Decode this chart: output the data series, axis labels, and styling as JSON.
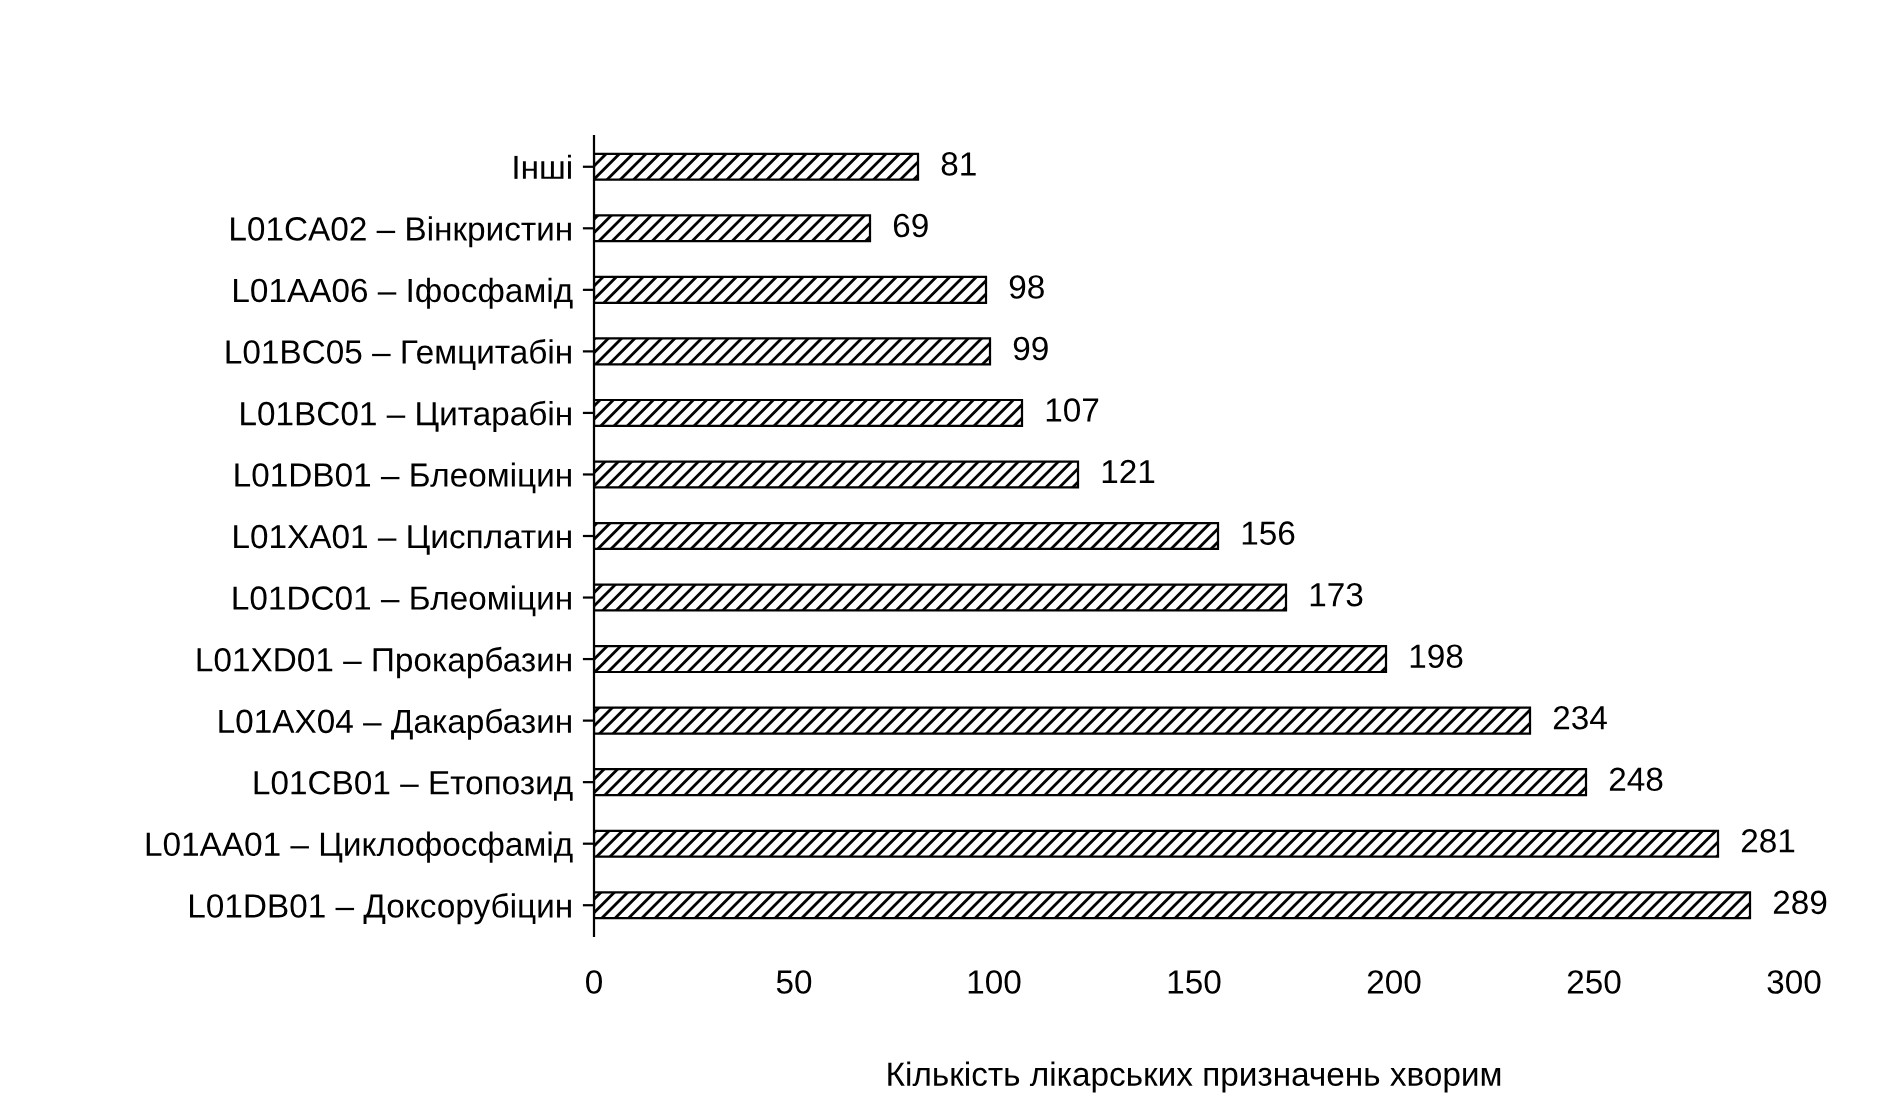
{
  "chart_data": {
    "type": "bar",
    "orientation": "horizontal",
    "xlabel": "Кількість лікарських призначень хворим",
    "categories": [
      "Інші",
      "L01CA02 – Вінкристин",
      "L01AA06 – Іфосфамід",
      "L01BC05 – Гемцитабін",
      "L01BC01 – Цитарабін",
      "L01DB01 – Блеоміцин",
      "L01XA01 – Цисплатин",
      "L01DC01 – Блеоміцин",
      "L01XD01 – Прокарбазин",
      "L01AX04 – Дакарбазин",
      "L01CB01 – Етопозид",
      "L01AA01 – Циклофосфамід",
      "L01DB01 – Доксорубіцин"
    ],
    "values": [
      81,
      69,
      98,
      99,
      107,
      121,
      156,
      173,
      198,
      234,
      248,
      281,
      289
    ],
    "color": "#000000",
    "xlim": [
      0,
      300
    ],
    "xticks": [
      0,
      50,
      100,
      150,
      200,
      250,
      300
    ],
    "data_labels": true,
    "grid": false,
    "legend": false
  }
}
